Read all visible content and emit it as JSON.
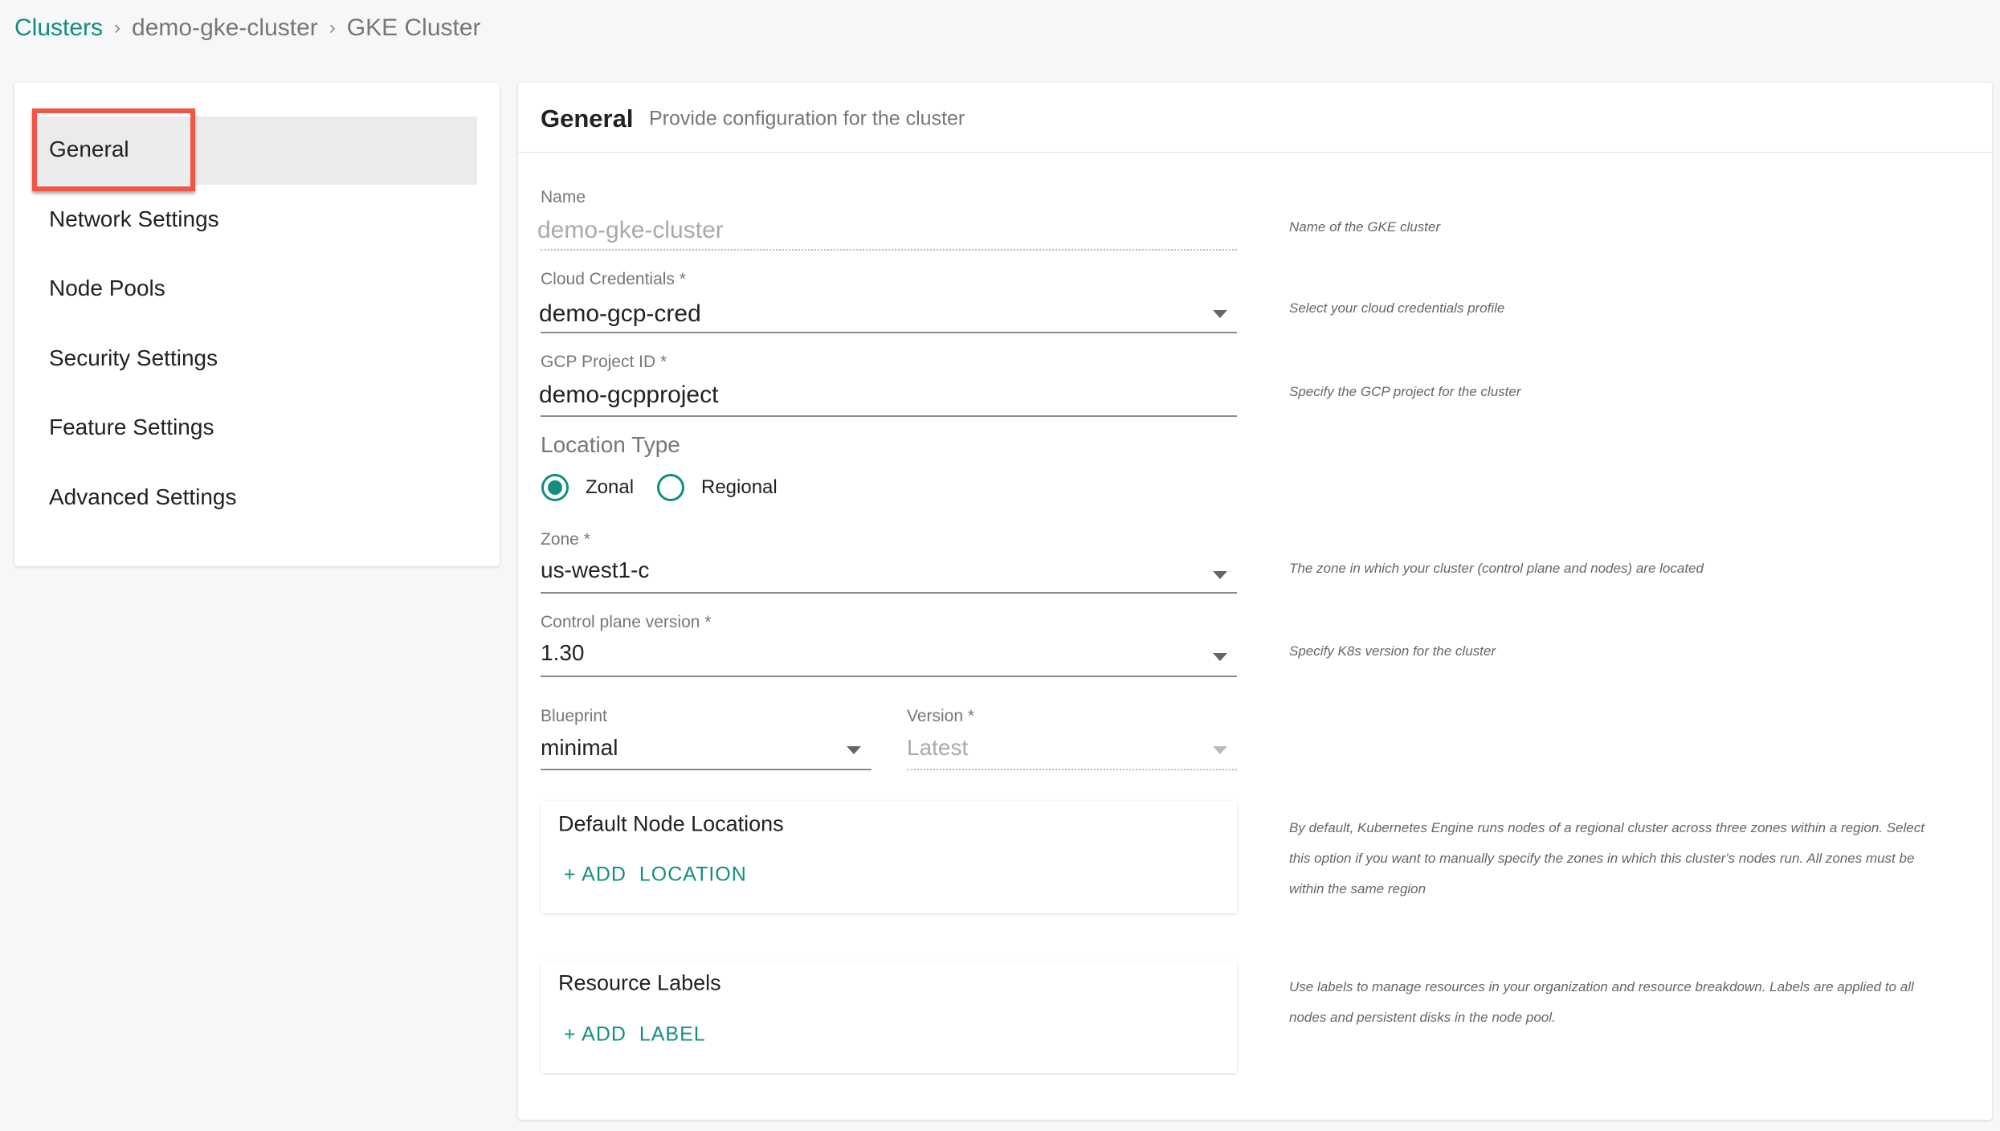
{
  "breadcrumb": {
    "items": [
      "Clusters",
      "demo-gke-cluster",
      "GKE Cluster"
    ],
    "separator": "›"
  },
  "sidebar": {
    "items": [
      {
        "label": "General",
        "active": true
      },
      {
        "label": "Network Settings"
      },
      {
        "label": "Node Pools"
      },
      {
        "label": "Security Settings"
      },
      {
        "label": "Feature Settings"
      },
      {
        "label": "Advanced Settings"
      }
    ]
  },
  "header": {
    "title": "General",
    "subtitle": "Provide configuration for the cluster"
  },
  "form": {
    "name": {
      "label": "Name",
      "value": "demo-gke-cluster",
      "help": "Name of the GKE cluster"
    },
    "credentials": {
      "label": "Cloud Credentials *",
      "value": "demo-gcp-cred",
      "help": "Select your cloud credentials profile"
    },
    "project": {
      "label": "GCP Project ID *",
      "value": "demo-gcpproject",
      "help": "Specify the GCP project for the cluster"
    },
    "location_type": {
      "label": "Location Type",
      "options": [
        "Zonal",
        "Regional"
      ],
      "selected": "Zonal"
    },
    "zone": {
      "label": "Zone *",
      "value": "us-west1-c",
      "help": "The zone in which your cluster (control plane and nodes) are located"
    },
    "cp_version": {
      "label": "Control plane version *",
      "value": "1.30",
      "help": "Specify K8s version for the cluster"
    },
    "blueprint": {
      "label": "Blueprint",
      "value": "minimal"
    },
    "bp_version": {
      "label": "Version *",
      "value": "Latest"
    },
    "node_locations": {
      "title": "Default Node Locations",
      "add": "+ ADD  LOCATION",
      "help": [
        "By default, Kubernetes Engine runs nodes of a regional cluster across three zones within a region. Select",
        "this option if you want to manually specify the zones in which this cluster's nodes run. All zones must be",
        "within the same region"
      ]
    },
    "labels": {
      "title": "Resource Labels",
      "add": "+ ADD  LABEL",
      "help": [
        "Use labels to manage resources in your organization and resource breakdown. Labels are applied to all",
        "nodes and persistent disks in the node pool."
      ]
    }
  },
  "colors": {
    "accent": "#138d80",
    "highlight": "#f05545"
  }
}
